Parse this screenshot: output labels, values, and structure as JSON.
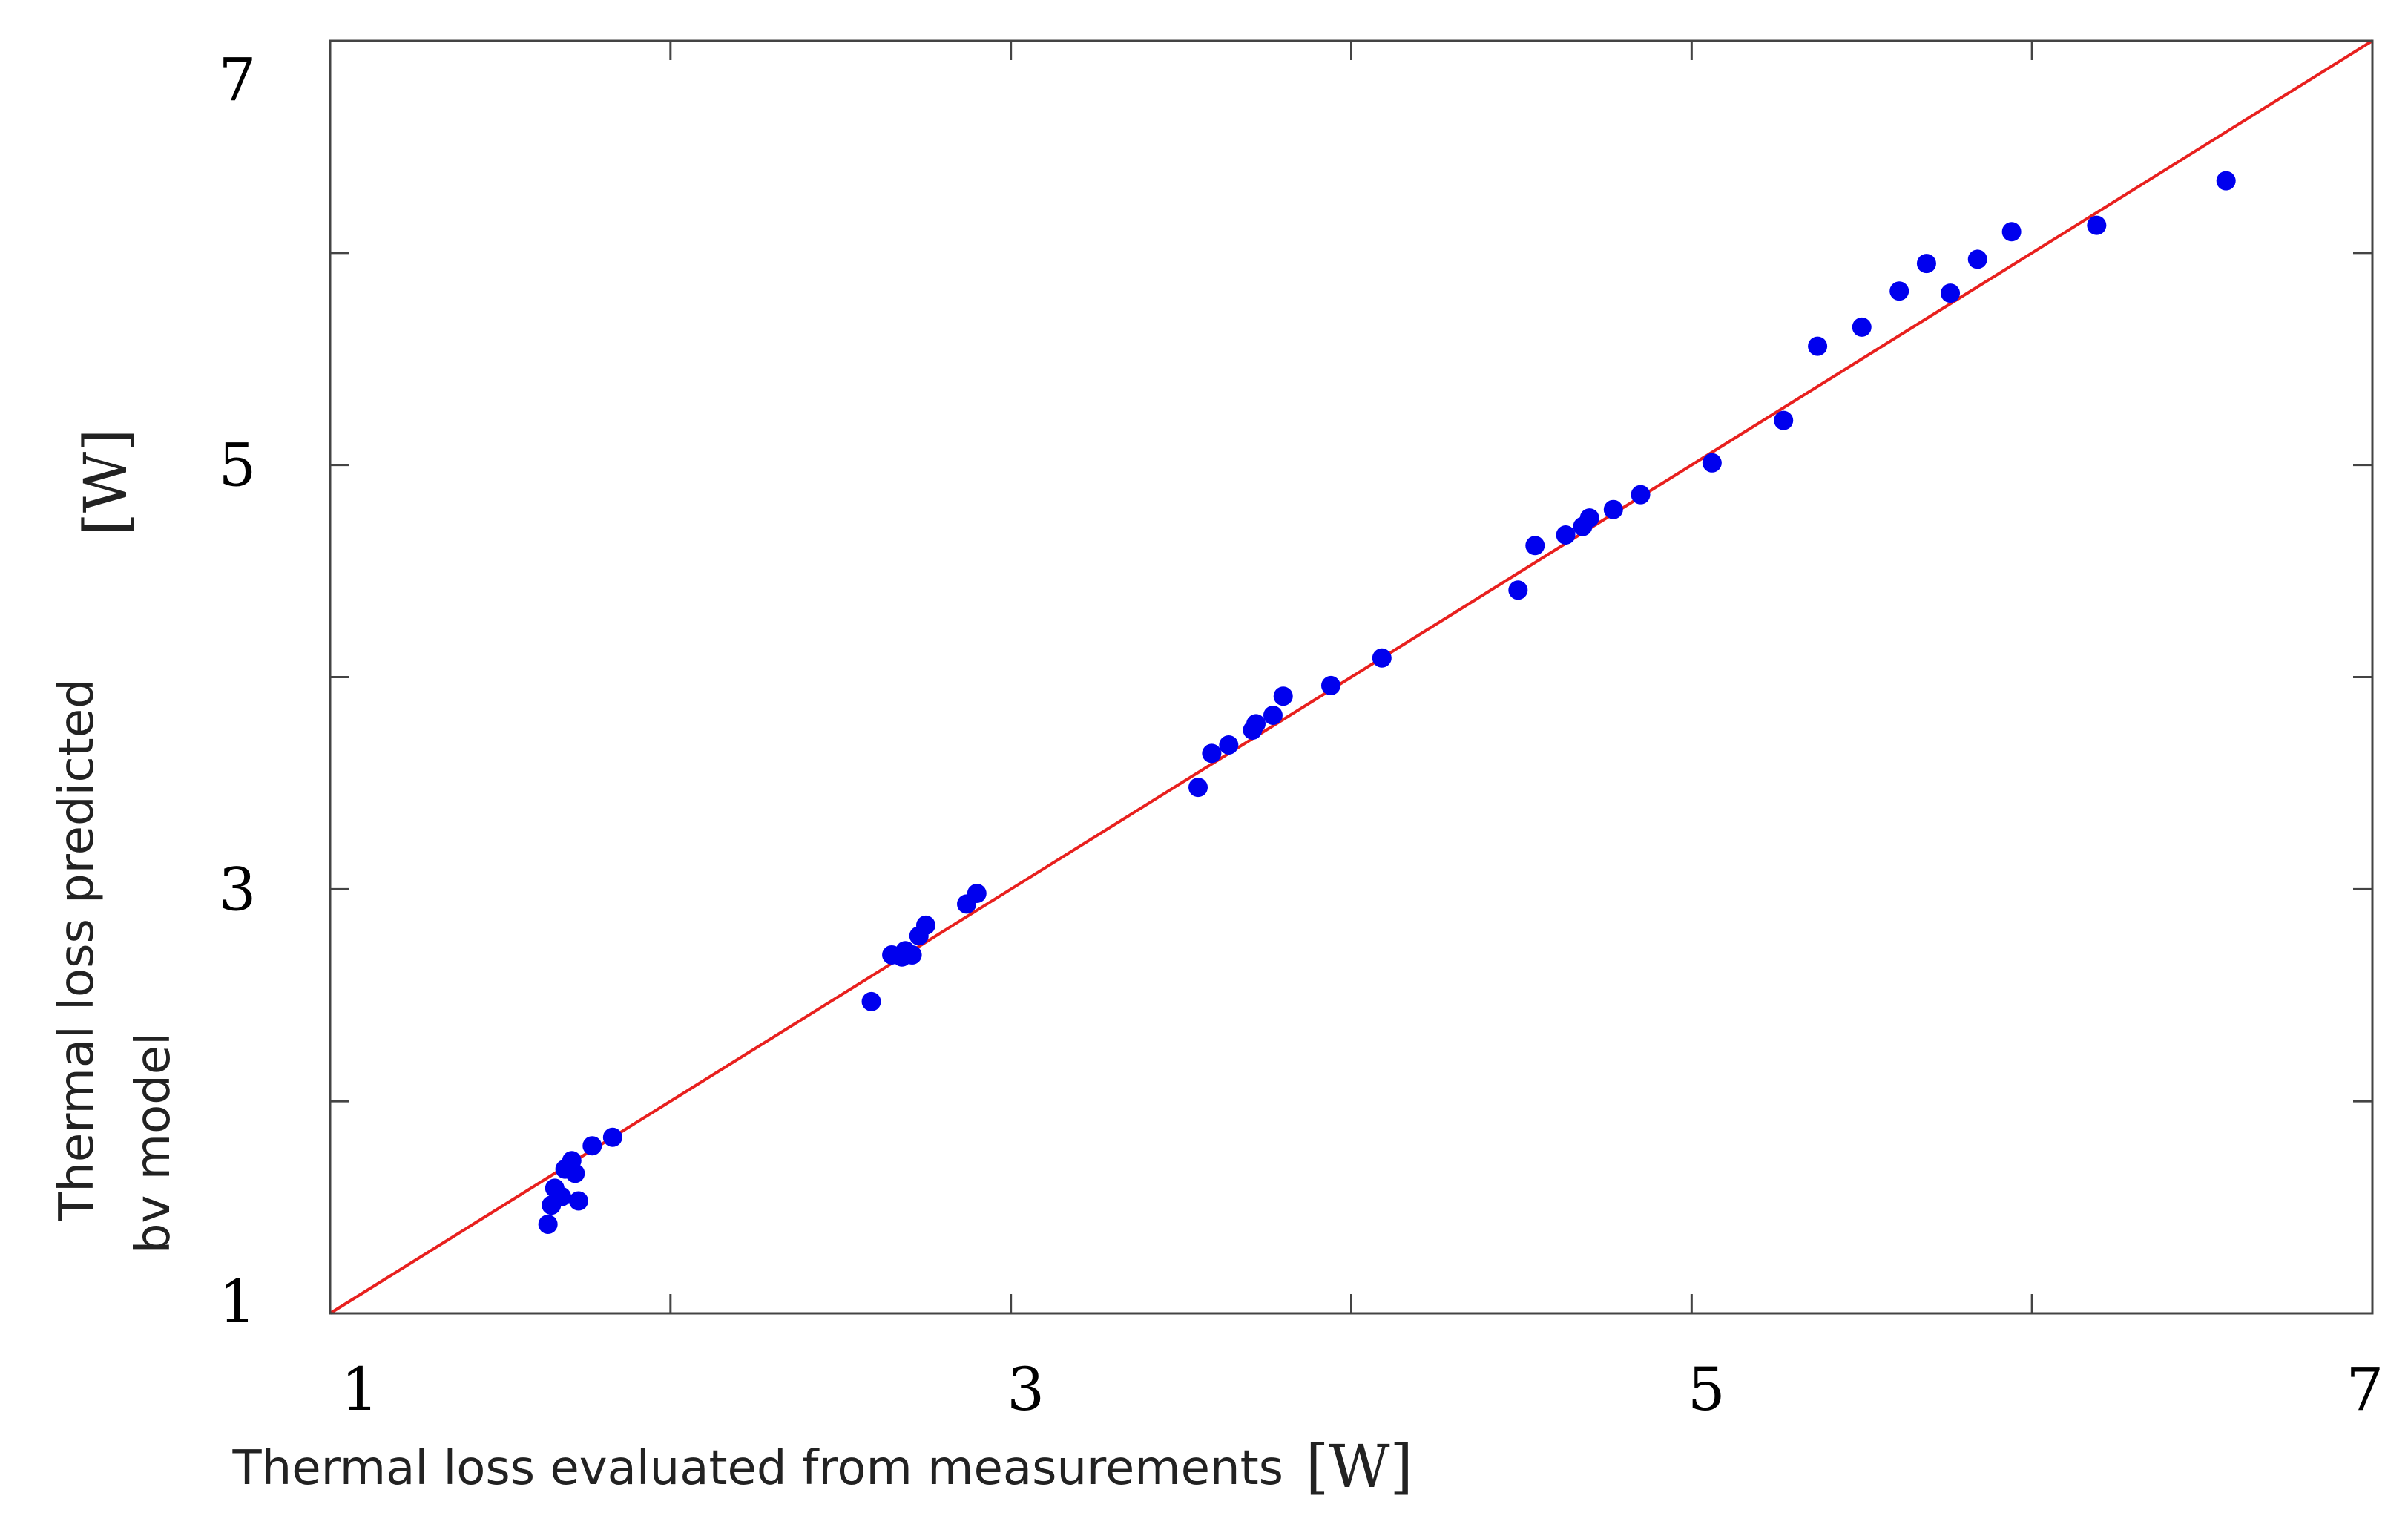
{
  "chart_data": {
    "type": "scatter",
    "title": "",
    "xlabel": "Thermal loss  evaluated from measurements",
    "xlabel_unit": "[W]",
    "ylabel_line1": "Thermal loss  predicted",
    "ylabel_line2": "bv model",
    "ylabel_unit": "[W]",
    "xlim": [
      1,
      7
    ],
    "ylim": [
      1,
      7
    ],
    "x_ticks": [
      1,
      2,
      3,
      4,
      5,
      6,
      7
    ],
    "y_ticks": [
      1,
      2,
      3,
      4,
      5,
      6,
      7
    ],
    "x_tick_labels": [
      "1",
      "3",
      "5",
      "7"
    ],
    "y_tick_labels": [
      "1",
      "3",
      "5",
      "7"
    ],
    "grid": false,
    "series": [
      {
        "name": "data",
        "kind": "scatter",
        "color": "#0000ee",
        "points": [
          [
            1.64,
            1.42
          ],
          [
            1.65,
            1.51
          ],
          [
            1.66,
            1.59
          ],
          [
            1.68,
            1.55
          ],
          [
            1.69,
            1.68
          ],
          [
            1.71,
            1.72
          ],
          [
            1.72,
            1.66
          ],
          [
            1.73,
            1.53
          ],
          [
            1.77,
            1.79
          ],
          [
            1.83,
            1.83
          ],
          [
            2.59,
            2.47
          ],
          [
            2.65,
            2.69
          ],
          [
            2.68,
            2.68
          ],
          [
            2.69,
            2.71
          ],
          [
            2.71,
            2.69
          ],
          [
            2.73,
            2.78
          ],
          [
            2.75,
            2.83
          ],
          [
            2.87,
            2.93
          ],
          [
            2.9,
            2.98
          ],
          [
            3.55,
            3.48
          ],
          [
            3.59,
            3.64
          ],
          [
            3.64,
            3.68
          ],
          [
            3.71,
            3.75
          ],
          [
            3.72,
            3.78
          ],
          [
            3.77,
            3.82
          ],
          [
            3.8,
            3.91
          ],
          [
            3.94,
            3.96
          ],
          [
            4.09,
            4.09
          ],
          [
            4.49,
            4.41
          ],
          [
            4.54,
            4.62
          ],
          [
            4.63,
            4.67
          ],
          [
            4.68,
            4.71
          ],
          [
            4.7,
            4.75
          ],
          [
            4.77,
            4.79
          ],
          [
            4.85,
            4.86
          ],
          [
            5.06,
            5.01
          ],
          [
            5.27,
            5.21
          ],
          [
            5.37,
            5.56
          ],
          [
            5.5,
            5.65
          ],
          [
            5.61,
            5.82
          ],
          [
            5.69,
            5.95
          ],
          [
            5.76,
            5.81
          ],
          [
            5.84,
            5.97
          ],
          [
            5.94,
            6.1
          ],
          [
            6.19,
            6.13
          ],
          [
            6.57,
            6.34
          ]
        ]
      },
      {
        "name": "y = x",
        "kind": "line",
        "color": "#e8201e",
        "points": [
          [
            1,
            1
          ],
          [
            7,
            7
          ]
        ]
      }
    ]
  }
}
